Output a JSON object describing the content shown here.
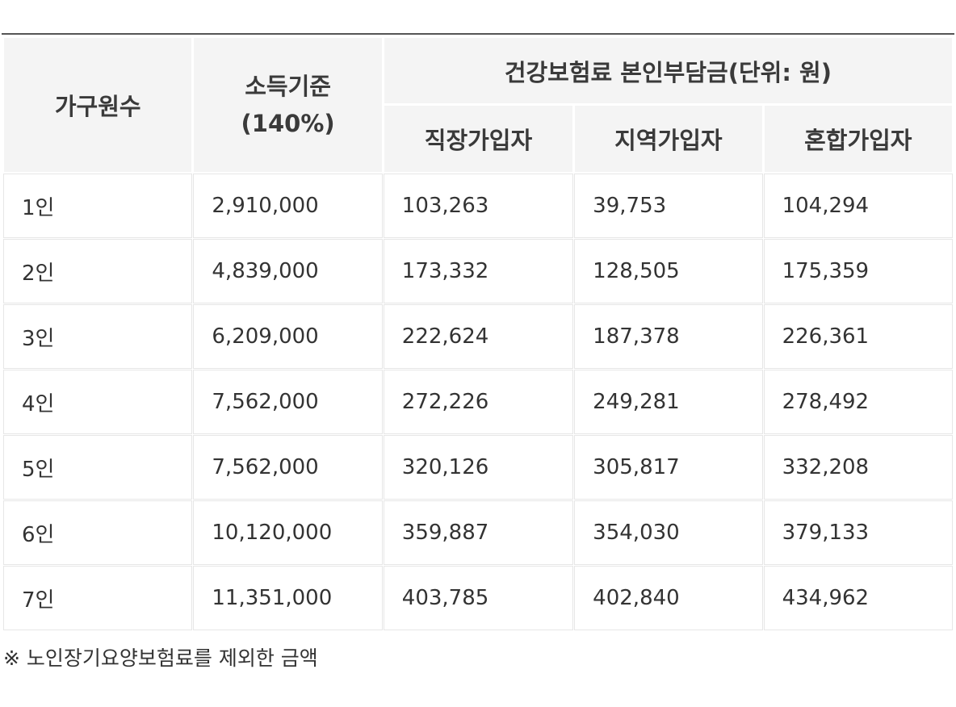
{
  "table": {
    "headers": {
      "household": "가구원수",
      "income_line1": "소득기준",
      "income_line2": "(140%)",
      "group": "건강보험료 본인부담금(단위: 원)",
      "employee": "직장가입자",
      "regional": "지역가입자",
      "mixed": "혼합가입자"
    },
    "rows": [
      {
        "household": "1인",
        "income": "2,910,000",
        "employee": "103,263",
        "regional": "39,753",
        "mixed": "104,294"
      },
      {
        "household": "2인",
        "income": "4,839,000",
        "employee": "173,332",
        "regional": "128,505",
        "mixed": "175,359"
      },
      {
        "household": "3인",
        "income": "6,209,000",
        "employee": "222,624",
        "regional": "187,378",
        "mixed": "226,361"
      },
      {
        "household": "4인",
        "income": "7,562,000",
        "employee": "272,226",
        "regional": "249,281",
        "mixed": "278,492"
      },
      {
        "household": "5인",
        "income": "7,562,000",
        "employee": "320,126",
        "regional": "305,817",
        "mixed": "332,208"
      },
      {
        "household": "6인",
        "income": "10,120,000",
        "employee": "359,887",
        "regional": "354,030",
        "mixed": "379,133"
      },
      {
        "household": "7인",
        "income": "11,351,000",
        "employee": "403,785",
        "regional": "402,840",
        "mixed": "434,962"
      }
    ]
  },
  "footnote": "※ 노인장기요양보험료를 제외한 금액"
}
